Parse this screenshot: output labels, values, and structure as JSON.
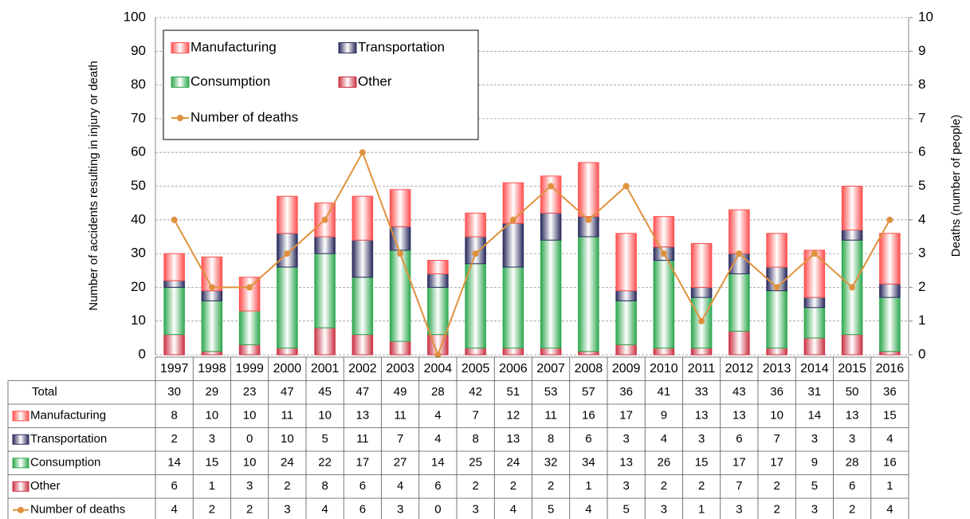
{
  "chart_data": {
    "type": "bar",
    "stacked": true,
    "y_label": "Number of accidents resulting in injury or death",
    "y2_label": "Deaths (number of people)",
    "categories": [
      "1997",
      "1998",
      "1999",
      "2000",
      "2001",
      "2002",
      "2003",
      "2004",
      "2005",
      "2006",
      "2007",
      "2008",
      "2009",
      "2010",
      "2011",
      "2012",
      "2013",
      "2014",
      "2015",
      "2016"
    ],
    "series": [
      {
        "name": "Other",
        "color": "#cc3344",
        "values": [
          6,
          1,
          3,
          2,
          8,
          6,
          4,
          6,
          2,
          2,
          2,
          1,
          3,
          2,
          2,
          7,
          2,
          5,
          6,
          1
        ]
      },
      {
        "name": "Consumption",
        "color": "#2fa84f",
        "values": [
          14,
          15,
          10,
          24,
          22,
          17,
          27,
          14,
          25,
          24,
          32,
          34,
          13,
          26,
          15,
          17,
          17,
          9,
          28,
          16
        ]
      },
      {
        "name": "Transportation",
        "color": "#2b2b5e",
        "values": [
          2,
          3,
          0,
          10,
          5,
          11,
          7,
          4,
          8,
          13,
          8,
          6,
          3,
          4,
          3,
          6,
          7,
          3,
          3,
          4
        ]
      },
      {
        "name": "Manufacturing",
        "color": "#ff5050",
        "values": [
          8,
          10,
          10,
          11,
          10,
          13,
          11,
          4,
          7,
          12,
          11,
          16,
          17,
          9,
          13,
          13,
          10,
          14,
          13,
          15
        ]
      },
      {
        "name": "Number of deaths",
        "type": "line",
        "axis": "y2",
        "color": "#e0913e",
        "values": [
          4,
          2,
          2,
          3,
          4,
          6,
          3,
          0,
          3,
          4,
          5,
          4,
          5,
          3,
          1,
          3,
          2,
          3,
          2,
          4
        ]
      }
    ],
    "total": {
      "label": "Total",
      "values": [
        30,
        29,
        23,
        47,
        45,
        47,
        49,
        28,
        42,
        51,
        53,
        57,
        36,
        41,
        33,
        43,
        36,
        31,
        50,
        36
      ]
    },
    "ylim": [
      0,
      100
    ],
    "yticks": [
      0,
      10,
      20,
      30,
      40,
      50,
      60,
      70,
      80,
      90,
      100
    ],
    "y2lim": [
      0,
      10
    ],
    "y2ticks": [
      0,
      1,
      2,
      3,
      4,
      5,
      6,
      7,
      8,
      9,
      10
    ],
    "grid": true
  }
}
